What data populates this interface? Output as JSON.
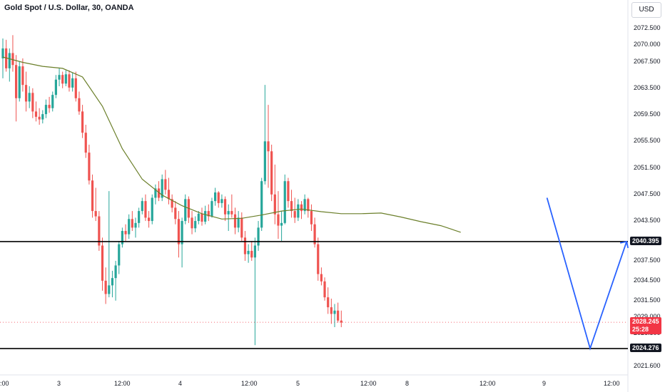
{
  "header": {
    "title": "Gold Spot / U.S. Dollar, 30, OANDA",
    "currency_button": "USD"
  },
  "price_axis": {
    "labels": [
      "2072.500",
      "2070.000",
      "2067.500",
      "2063.500",
      "2059.500",
      "2055.500",
      "2051.500",
      "2047.500",
      "2043.500",
      "2037.500",
      "2034.500",
      "2031.500",
      "2029.000",
      "2026.500",
      "2021.600"
    ]
  },
  "time_axis": {
    "labels": [
      ":00",
      "3",
      "12:00",
      "4",
      "12:00",
      "5",
      "12:00",
      "8",
      "12:00",
      "9",
      "12:00"
    ]
  },
  "price_tags": {
    "resistance": "2040.395",
    "current_price": "2028.245",
    "countdown": "25:28",
    "support": "2024.276"
  },
  "colors": {
    "up": "#26a69a",
    "down": "#ef5350",
    "ma": "#6b7f2a",
    "drawing": "#2962ff",
    "level_line": "#000000",
    "current_tag": "#f23645",
    "level_tag": "#131722"
  },
  "chart_data": {
    "type": "candlestick",
    "symbol": "XAUUSD",
    "timeframe": "30",
    "ylim": [
      2020.6,
      2074.5
    ],
    "horizontal_levels": [
      2040.395,
      2024.276
    ],
    "current_price": 2028.245,
    "projection_path": [
      [
        164,
        2047.0
      ],
      [
        177,
        2024.3
      ],
      [
        188,
        2040.4
      ]
    ],
    "bars": [
      [
        2068.0,
        2071.0,
        2065.0,
        2069.5
      ],
      [
        2069.5,
        2070.8,
        2066.0,
        2066.5
      ],
      [
        2066.5,
        2069.5,
        2064.5,
        2068.8
      ],
      [
        2068.8,
        2071.5,
        2066.0,
        2067.0
      ],
      [
        2067.0,
        2068.5,
        2058.5,
        2062.0
      ],
      [
        2062.0,
        2067.5,
        2061.5,
        2066.8
      ],
      [
        2066.8,
        2068.0,
        2063.0,
        2064.0
      ],
      [
        2064.0,
        2066.0,
        2060.0,
        2061.5
      ],
      [
        2061.5,
        2063.8,
        2060.5,
        2062.8
      ],
      [
        2062.8,
        2063.5,
        2059.0,
        2060.0
      ],
      [
        2060.0,
        2061.5,
        2058.5,
        2059.2
      ],
      [
        2059.2,
        2060.5,
        2058.0,
        2058.8
      ],
      [
        2058.8,
        2060.2,
        2058.2,
        2059.6
      ],
      [
        2059.6,
        2061.8,
        2059.0,
        2061.0
      ],
      [
        2061.0,
        2062.2,
        2059.8,
        2060.5
      ],
      [
        2060.5,
        2063.0,
        2060.0,
        2062.5
      ],
      [
        2062.5,
        2065.5,
        2062.0,
        2064.8
      ],
      [
        2064.8,
        2066.5,
        2063.8,
        2065.5
      ],
      [
        2065.5,
        2066.0,
        2063.5,
        2064.2
      ],
      [
        2064.2,
        2066.2,
        2063.8,
        2065.6
      ],
      [
        2065.6,
        2066.2,
        2063.0,
        2063.6
      ],
      [
        2063.6,
        2065.8,
        2063.0,
        2065.0
      ],
      [
        2065.0,
        2066.0,
        2061.5,
        2062.0
      ],
      [
        2062.0,
        2063.0,
        2059.5,
        2060.0
      ],
      [
        2060.0,
        2061.0,
        2056.0,
        2056.8
      ],
      [
        2056.8,
        2058.0,
        2053.0,
        2053.8
      ],
      [
        2053.8,
        2055.0,
        2049.0,
        2049.6
      ],
      [
        2049.6,
        2050.5,
        2044.0,
        2045.0
      ],
      [
        2045.0,
        2048.5,
        2043.5,
        2044.2
      ],
      [
        2044.2,
        2045.0,
        2039.0,
        2039.8
      ],
      [
        2039.8,
        2041.0,
        2033.0,
        2034.5
      ],
      [
        2034.5,
        2036.5,
        2031.0,
        2032.5
      ],
      [
        2032.5,
        2048.0,
        2032.0,
        2033.8
      ],
      [
        2033.8,
        2036.0,
        2032.0,
        2034.9
      ],
      [
        2034.9,
        2037.5,
        2031.5,
        2036.8
      ],
      [
        2036.8,
        2040.5,
        2035.5,
        2040.0
      ],
      [
        2040.0,
        2042.5,
        2039.5,
        2042.0
      ],
      [
        2042.0,
        2043.0,
        2040.5,
        2041.5
      ],
      [
        2041.5,
        2044.5,
        2040.8,
        2043.8
      ],
      [
        2043.8,
        2045.0,
        2042.0,
        2042.5
      ],
      [
        2042.5,
        2044.0,
        2041.0,
        2043.2
      ],
      [
        2043.2,
        2045.5,
        2042.5,
        2045.0
      ],
      [
        2045.0,
        2047.0,
        2044.5,
        2046.5
      ],
      [
        2046.5,
        2047.5,
        2043.5,
        2044.0
      ],
      [
        2044.0,
        2045.0,
        2042.5,
        2043.5
      ],
      [
        2043.5,
        2047.5,
        2043.0,
        2047.0
      ],
      [
        2047.0,
        2049.0,
        2046.0,
        2048.4
      ],
      [
        2048.4,
        2049.5,
        2046.5,
        2047.0
      ],
      [
        2047.0,
        2050.5,
        2046.5,
        2049.8
      ],
      [
        2049.8,
        2051.2,
        2047.5,
        2048.2
      ],
      [
        2048.2,
        2050.0,
        2046.0,
        2046.8
      ],
      [
        2046.8,
        2047.5,
        2044.8,
        2045.5
      ],
      [
        2045.5,
        2046.5,
        2043.0,
        2043.8
      ],
      [
        2043.8,
        2045.0,
        2038.0,
        2040.0
      ],
      [
        2040.0,
        2044.0,
        2036.5,
        2043.5
      ],
      [
        2043.5,
        2047.5,
        2043.0,
        2046.8
      ],
      [
        2046.8,
        2047.2,
        2043.2,
        2044.0
      ],
      [
        2044.0,
        2045.0,
        2041.5,
        2042.4
      ],
      [
        2042.4,
        2044.2,
        2041.8,
        2043.5
      ],
      [
        2043.5,
        2045.0,
        2043.0,
        2044.6
      ],
      [
        2044.6,
        2045.5,
        2042.8,
        2043.4
      ],
      [
        2043.4,
        2045.8,
        2043.0,
        2045.0
      ],
      [
        2045.0,
        2046.0,
        2043.5,
        2044.2
      ],
      [
        2044.2,
        2047.0,
        2044.0,
        2046.5
      ],
      [
        2046.5,
        2048.5,
        2045.8,
        2047.8
      ],
      [
        2047.8,
        2048.0,
        2045.5,
        2046.2
      ],
      [
        2046.2,
        2047.5,
        2045.5,
        2046.8
      ],
      [
        2046.8,
        2047.2,
        2043.5,
        2044.5
      ],
      [
        2044.5,
        2046.0,
        2042.0,
        2045.0
      ],
      [
        2045.0,
        2047.5,
        2044.0,
        2044.5
      ],
      [
        2044.5,
        2045.5,
        2041.5,
        2042.5
      ],
      [
        2042.5,
        2045.0,
        2041.8,
        2044.0
      ],
      [
        2044.0,
        2044.8,
        2040.5,
        2041.0
      ],
      [
        2041.0,
        2042.0,
        2037.5,
        2038.5
      ],
      [
        2038.5,
        2040.0,
        2037.2,
        2039.0
      ],
      [
        2039.0,
        2040.5,
        2037.5,
        2038.0
      ],
      [
        2038.0,
        2041.0,
        2024.8,
        2039.8
      ],
      [
        2039.8,
        2043.5,
        2039.0,
        2042.5
      ],
      [
        2042.5,
        2050.0,
        2042.0,
        2049.5
      ],
      [
        2049.5,
        2064.0,
        2049.0,
        2055.5
      ],
      [
        2055.5,
        2061.0,
        2048.5,
        2054.0
      ],
      [
        2054.0,
        2055.0,
        2046.5,
        2047.5
      ],
      [
        2047.5,
        2052.0,
        2043.0,
        2044.5
      ],
      [
        2044.5,
        2048.0,
        2040.8,
        2042.8
      ],
      [
        2042.8,
        2045.0,
        2040.5,
        2043.2
      ],
      [
        2043.2,
        2050.5,
        2043.0,
        2049.5
      ],
      [
        2049.5,
        2050.0,
        2045.5,
        2046.5
      ],
      [
        2046.5,
        2048.2,
        2044.0,
        2045.0
      ],
      [
        2045.0,
        2047.0,
        2043.2,
        2044.0
      ],
      [
        2044.0,
        2046.8,
        2043.5,
        2046.0
      ],
      [
        2046.0,
        2046.5,
        2043.8,
        2045.0
      ],
      [
        2045.0,
        2047.5,
        2044.5,
        2046.8
      ],
      [
        2046.8,
        2047.0,
        2044.0,
        2045.0
      ],
      [
        2045.0,
        2046.0,
        2042.0,
        2043.0
      ],
      [
        2043.0,
        2044.0,
        2039.5,
        2040.0
      ],
      [
        2040.0,
        2041.0,
        2034.5,
        2035.5
      ],
      [
        2035.5,
        2036.5,
        2033.8,
        2034.4
      ],
      [
        2034.4,
        2035.0,
        2031.5,
        2032.0
      ],
      [
        2032.0,
        2033.5,
        2029.5,
        2030.5
      ],
      [
        2030.5,
        2031.8,
        2028.0,
        2029.5
      ],
      [
        2029.5,
        2031.0,
        2027.5,
        2030.0
      ],
      [
        2030.0,
        2031.2,
        2028.2,
        2028.5
      ],
      [
        2028.5,
        2030.0,
        2027.5,
        2028.2
      ]
    ],
    "ma": [
      [
        0,
        2068.2
      ],
      [
        6,
        2067.4
      ],
      [
        12,
        2066.8
      ],
      [
        18,
        2066.5
      ],
      [
        24,
        2065.2
      ],
      [
        30,
        2060.8
      ],
      [
        36,
        2054.4
      ],
      [
        42,
        2049.8
      ],
      [
        48,
        2047.4
      ],
      [
        54,
        2045.8
      ],
      [
        60,
        2044.6
      ],
      [
        66,
        2043.8
      ],
      [
        72,
        2043.9
      ],
      [
        78,
        2044.4
      ],
      [
        84,
        2045.0
      ],
      [
        90,
        2045.3
      ],
      [
        96,
        2044.9
      ],
      [
        102,
        2044.6
      ],
      [
        108,
        2044.6
      ],
      [
        114,
        2044.7
      ],
      [
        120,
        2044.1
      ],
      [
        126,
        2043.4
      ],
      [
        132,
        2042.8
      ],
      [
        138,
        2041.8
      ]
    ],
    "scale_hint": "bar index 0 at 4px, 4.65px per bar"
  }
}
